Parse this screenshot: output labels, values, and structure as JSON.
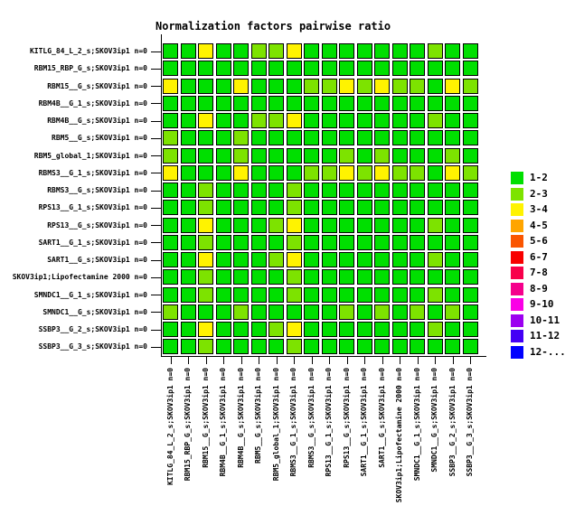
{
  "title": "Normalization factors pairwise ratio",
  "chart_data": {
    "type": "heatmap",
    "title": "Normalization factors pairwise ratio",
    "x_labels": [
      "KITLG_84_L_2_s;SKOV3ip1 n=0",
      "RBM15_RBP_G_s;SKOV3ip1 n=0",
      "RBM15__G_s;SKOV3ip1 n=0",
      "RBM4B__G_1_s;SKOV3ip1 n=0",
      "RBM4B__G_s;SKOV3ip1 n=0",
      "RBM5__G_s;SKOV3ip1 n=0",
      "RBM5_global_1;SKOV3ip1 n=0",
      "RBMS3__G_1_s;SKOV3ip1 n=0",
      "RBMS3__G_s;SKOV3ip1 n=0",
      "RPS13__G_1_s;SKOV3ip1 n=0",
      "RPS13__G_s;SKOV3ip1 n=0",
      "SART1__G_1_s;SKOV3ip1 n=0",
      "SART1__G_s;SKOV3ip1 n=0",
      "SKOV3ip1;Lipofectamine 2000 n=0",
      "SMNDC1__G_1_s;SKOV3ip1 n=0",
      "SMNDC1__G_s;SKOV3ip1 n=0",
      "SSBP3__G_2_s;SKOV3ip1 n=0",
      "SSBP3__G_3_s;SKOV3ip1 n=0"
    ],
    "y_labels": [
      "KITLG_84_L_2_s;SKOV3ip1 n=0",
      "RBM15_RBP_G_s;SKOV3ip1 n=0",
      "RBM15__G_s;SKOV3ip1 n=0",
      "RBM4B__G_1_s;SKOV3ip1 n=0",
      "RBM4B__G_s;SKOV3ip1 n=0",
      "RBM5__G_s;SKOV3ip1 n=0",
      "RBM5_global_1;SKOV3ip1 n=0",
      "RBMS3__G_1_s;SKOV3ip1 n=0",
      "RBMS3__G_s;SKOV3ip1 n=0",
      "RPS13__G_1_s;SKOV3ip1 n=0",
      "RPS13__G_s;SKOV3ip1 n=0",
      "SART1__G_1_s;SKOV3ip1 n=0",
      "SART1__G_s;SKOV3ip1 n=0",
      "SKOV3ip1;Lipofectamine 2000 n=0",
      "SMNDC1__G_1_s;SKOV3ip1 n=0",
      "SMNDC1__G_s;SKOV3ip1 n=0",
      "SSBP3__G_2_s;SKOV3ip1 n=0",
      "SSBP3__G_3_s;SKOV3ip1 n=0"
    ],
    "value_meaning": "pairwise ratio bin index: 1 = ratio 1-2, 2 = ratio 2-3, 3 = ratio 3-4",
    "values": [
      [
        1,
        1,
        3,
        1,
        1,
        2,
        2,
        3,
        1,
        1,
        1,
        1,
        1,
        1,
        1,
        2,
        1,
        1
      ],
      [
        1,
        1,
        1,
        1,
        1,
        1,
        1,
        1,
        1,
        1,
        1,
        1,
        1,
        1,
        1,
        1,
        1,
        1
      ],
      [
        3,
        1,
        1,
        1,
        3,
        1,
        1,
        1,
        2,
        2,
        3,
        2,
        3,
        2,
        2,
        1,
        3,
        2
      ],
      [
        1,
        1,
        1,
        1,
        1,
        1,
        1,
        1,
        1,
        1,
        1,
        1,
        1,
        1,
        1,
        1,
        1,
        1
      ],
      [
        1,
        1,
        3,
        1,
        1,
        2,
        2,
        3,
        1,
        1,
        1,
        1,
        1,
        1,
        1,
        2,
        1,
        1
      ],
      [
        2,
        1,
        1,
        1,
        2,
        1,
        1,
        1,
        1,
        1,
        1,
        1,
        1,
        1,
        1,
        1,
        1,
        1
      ],
      [
        2,
        1,
        1,
        1,
        2,
        1,
        1,
        1,
        1,
        1,
        2,
        1,
        2,
        1,
        1,
        1,
        2,
        1
      ],
      [
        3,
        1,
        1,
        1,
        3,
        1,
        1,
        1,
        2,
        2,
        3,
        2,
        3,
        2,
        2,
        1,
        3,
        2
      ],
      [
        1,
        1,
        2,
        1,
        1,
        1,
        1,
        2,
        1,
        1,
        1,
        1,
        1,
        1,
        1,
        1,
        1,
        1
      ],
      [
        1,
        1,
        2,
        1,
        1,
        1,
        1,
        2,
        1,
        1,
        1,
        1,
        1,
        1,
        1,
        1,
        1,
        1
      ],
      [
        1,
        1,
        3,
        1,
        1,
        1,
        2,
        3,
        1,
        1,
        1,
        1,
        1,
        1,
        1,
        2,
        1,
        1
      ],
      [
        1,
        1,
        2,
        1,
        1,
        1,
        1,
        2,
        1,
        1,
        1,
        1,
        1,
        1,
        1,
        1,
        1,
        1
      ],
      [
        1,
        1,
        3,
        1,
        1,
        1,
        2,
        3,
        1,
        1,
        1,
        1,
        1,
        1,
        1,
        2,
        1,
        1
      ],
      [
        1,
        1,
        2,
        1,
        1,
        1,
        1,
        2,
        1,
        1,
        1,
        1,
        1,
        1,
        1,
        1,
        1,
        1
      ],
      [
        1,
        1,
        2,
        1,
        1,
        1,
        1,
        2,
        1,
        1,
        1,
        1,
        1,
        1,
        1,
        2,
        1,
        1
      ],
      [
        2,
        1,
        1,
        1,
        2,
        1,
        1,
        1,
        1,
        1,
        2,
        1,
        2,
        1,
        2,
        1,
        2,
        1
      ],
      [
        1,
        1,
        3,
        1,
        1,
        1,
        2,
        3,
        1,
        1,
        1,
        1,
        1,
        1,
        1,
        2,
        1,
        1
      ],
      [
        1,
        1,
        2,
        1,
        1,
        1,
        1,
        2,
        1,
        1,
        1,
        1,
        1,
        1,
        1,
        1,
        1,
        1
      ]
    ],
    "legend": {
      "position": "right",
      "bins": [
        {
          "label": "1-2",
          "color": "#00DF00"
        },
        {
          "label": "2-3",
          "color": "#7DE300"
        },
        {
          "label": "3-4",
          "color": "#FFF300"
        },
        {
          "label": "4-5",
          "color": "#FFA500"
        },
        {
          "label": "5-6",
          "color": "#FA5500"
        },
        {
          "label": "6-7",
          "color": "#F80000"
        },
        {
          "label": "7-8",
          "color": "#F8004B"
        },
        {
          "label": "8-9",
          "color": "#F5008C"
        },
        {
          "label": "9-10",
          "color": "#FA00E6"
        },
        {
          "label": "10-11",
          "color": "#9C00F0"
        },
        {
          "label": "11-12",
          "color": "#4400F5"
        },
        {
          "label": "12-...",
          "color": "#0000FF"
        }
      ]
    },
    "grid": {
      "rows": 18,
      "cols": 18
    }
  }
}
